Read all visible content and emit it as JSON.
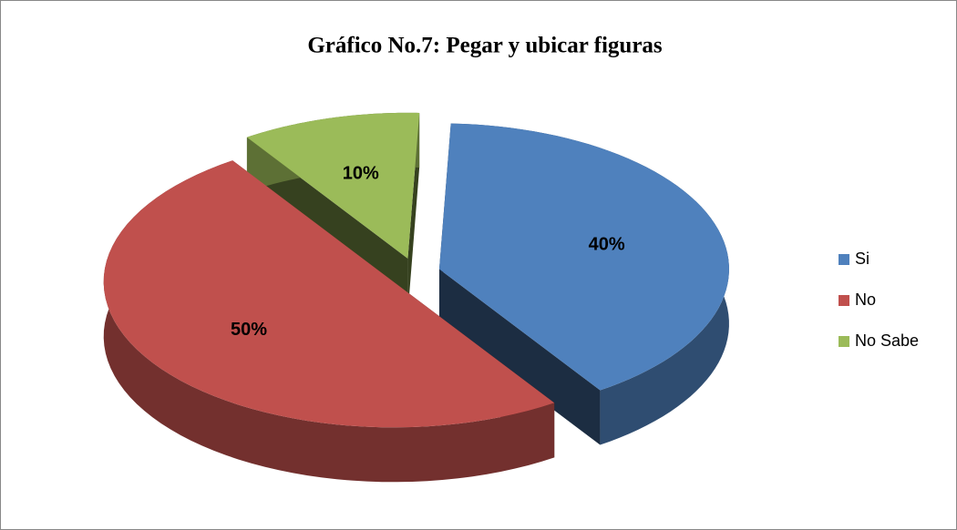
{
  "chart_data": {
    "type": "pie",
    "title": "Gráfico No.7: Pegar y ubicar figuras",
    "categories": [
      "Si",
      "No",
      "No Sabe"
    ],
    "values": [
      40,
      50,
      10
    ],
    "value_labels": [
      "40%",
      "50%",
      "10%"
    ],
    "colors": [
      "#4f81bd",
      "#c0504d",
      "#9bbb59"
    ],
    "legend": "right"
  }
}
